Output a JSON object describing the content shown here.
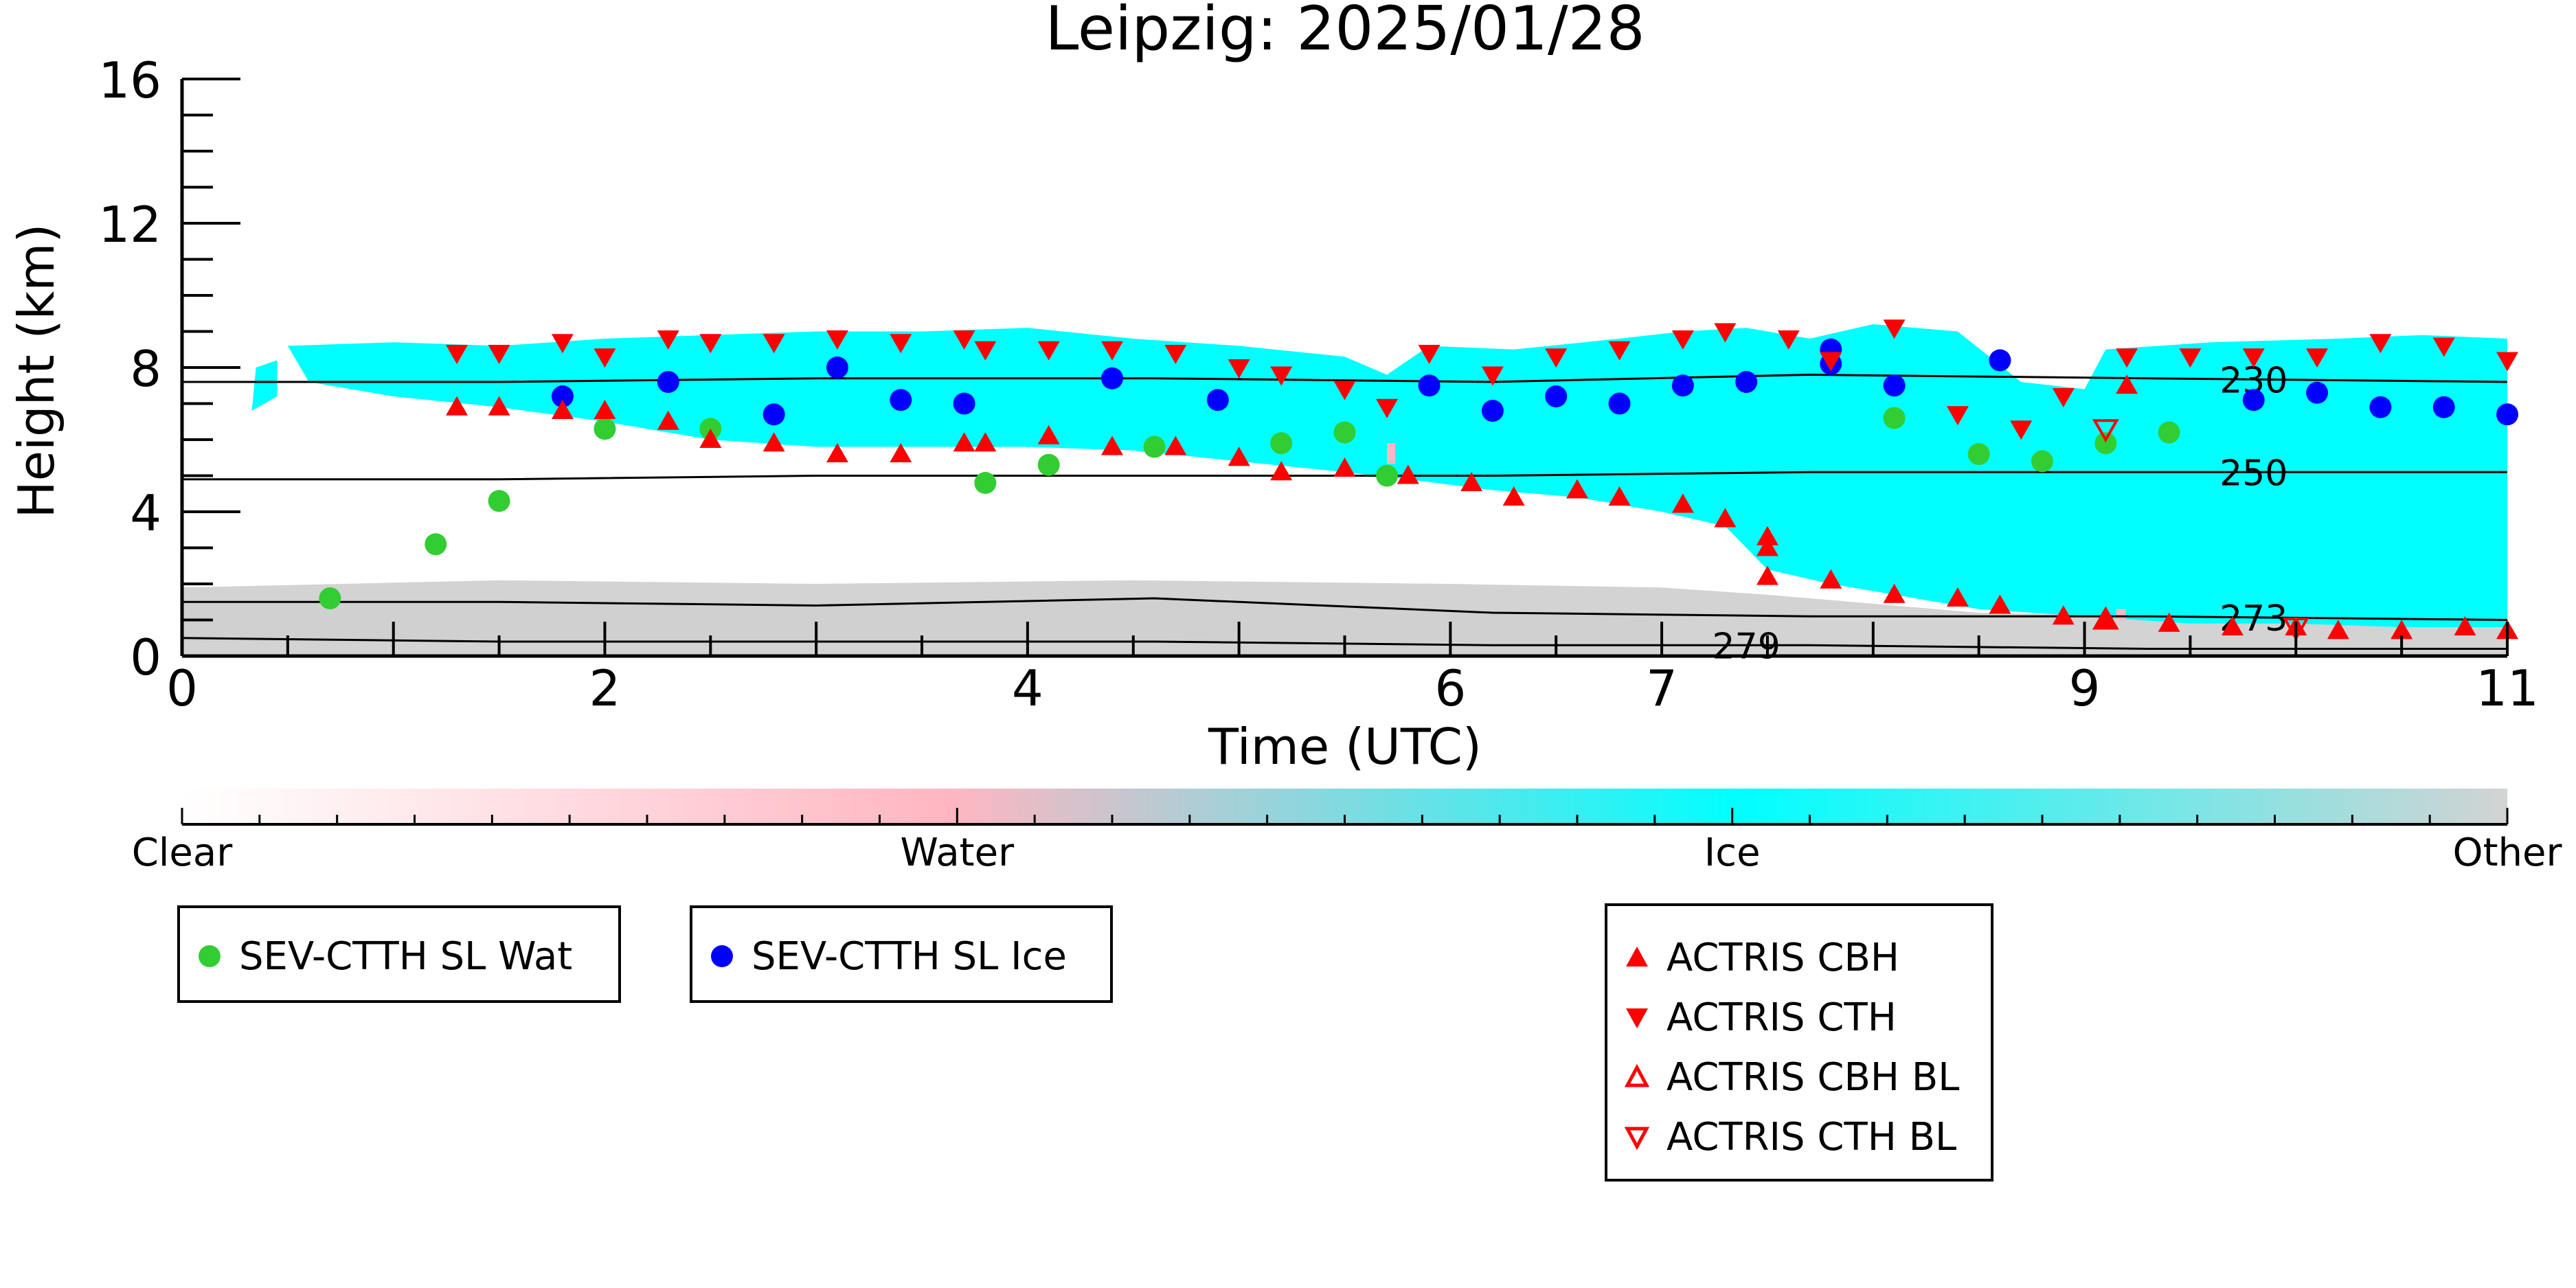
{
  "chart_data": {
    "type": "scatter",
    "title": "Leipzig: 2025/01/28",
    "xlabel": "Time (UTC)",
    "ylabel": "Height (km)",
    "xlim": [
      0,
      11
    ],
    "ylim": [
      0,
      16
    ],
    "x_tick_labels": [
      "0",
      "2",
      "4",
      "6",
      "7",
      "9",
      "11"
    ],
    "y_tick_labels": [
      "0",
      "4",
      "8",
      "12",
      "16"
    ],
    "colorbar": {
      "labels": [
        "Clear",
        "Water",
        "Ice",
        "Other"
      ],
      "colors": {
        "clear": "#ffffff",
        "water": "#ffb6c1",
        "ice": "#00ffff",
        "other": "#d3d3d3"
      }
    },
    "isotherms": [
      {
        "label": "230",
        "y_km": [
          7.6,
          7.6,
          7.7,
          7.7,
          7.6,
          7.8,
          7.7,
          7.6
        ]
      },
      {
        "label": "250",
        "y_km": [
          4.9,
          4.9,
          5.0,
          5.0,
          5.0,
          5.1,
          5.1,
          5.1
        ]
      },
      {
        "label": "273",
        "y_km": [
          1.5,
          1.5,
          1.4,
          1.6,
          1.2,
          1.1,
          1.1,
          1.0
        ]
      },
      {
        "label": "279",
        "y_km": [
          0.5,
          0.4,
          0.4,
          0.4,
          0.3,
          0.3,
          0.2,
          0.2
        ]
      }
    ],
    "isotherm_x": [
      0,
      1.5,
      3.0,
      4.6,
      6.2,
      7.7,
      9.3,
      11.0
    ],
    "series": [
      {
        "name": "SEV-CTTH SL Wat",
        "marker": "circle",
        "color": "#32cd32",
        "points": [
          [
            0.7,
            1.6
          ],
          [
            1.2,
            3.1
          ],
          [
            1.5,
            4.3
          ],
          [
            2.0,
            6.3
          ],
          [
            2.5,
            6.3
          ],
          [
            3.8,
            4.8
          ],
          [
            4.1,
            5.3
          ],
          [
            4.6,
            5.8
          ],
          [
            5.2,
            5.9
          ],
          [
            5.5,
            6.2
          ],
          [
            5.7,
            5.0
          ],
          [
            8.1,
            6.6
          ],
          [
            8.5,
            5.6
          ],
          [
            8.8,
            5.4
          ],
          [
            9.1,
            5.9
          ],
          [
            9.4,
            6.2
          ]
        ]
      },
      {
        "name": "SEV-CTTH SL Ice",
        "marker": "circle",
        "color": "#0000ff",
        "points": [
          [
            1.8,
            7.2
          ],
          [
            2.3,
            7.6
          ],
          [
            2.8,
            6.7
          ],
          [
            3.1,
            8.0
          ],
          [
            3.4,
            7.1
          ],
          [
            3.7,
            7.0
          ],
          [
            4.4,
            7.7
          ],
          [
            4.9,
            7.1
          ],
          [
            5.9,
            7.5
          ],
          [
            6.2,
            6.8
          ],
          [
            6.5,
            7.2
          ],
          [
            6.8,
            7.0
          ],
          [
            7.1,
            7.5
          ],
          [
            7.4,
            7.6
          ],
          [
            7.8,
            8.5
          ],
          [
            7.8,
            8.1
          ],
          [
            8.1,
            7.5
          ],
          [
            8.6,
            8.2
          ],
          [
            9.8,
            7.1
          ],
          [
            10.1,
            7.3
          ],
          [
            10.4,
            6.9
          ],
          [
            10.7,
            6.9
          ],
          [
            11.0,
            6.7
          ]
        ]
      },
      {
        "name": "ACTRIS CBH",
        "marker": "triangle-up",
        "color": "#ff0000",
        "filled": true,
        "points": [
          [
            1.3,
            6.9
          ],
          [
            1.5,
            6.9
          ],
          [
            1.8,
            6.8
          ],
          [
            2.0,
            6.8
          ],
          [
            2.3,
            6.5
          ],
          [
            2.5,
            6.0
          ],
          [
            2.8,
            5.9
          ],
          [
            3.1,
            5.6
          ],
          [
            3.4,
            5.6
          ],
          [
            3.7,
            5.9
          ],
          [
            3.8,
            5.9
          ],
          [
            4.1,
            6.1
          ],
          [
            4.4,
            5.8
          ],
          [
            4.7,
            5.8
          ],
          [
            5.0,
            5.5
          ],
          [
            5.2,
            5.1
          ],
          [
            5.5,
            5.2
          ],
          [
            5.8,
            5.0
          ],
          [
            6.1,
            4.8
          ],
          [
            6.3,
            4.4
          ],
          [
            6.6,
            4.6
          ],
          [
            6.8,
            4.4
          ],
          [
            7.1,
            4.2
          ],
          [
            7.3,
            3.8
          ],
          [
            7.5,
            3.3
          ],
          [
            7.5,
            3.0
          ],
          [
            7.5,
            2.2
          ],
          [
            7.8,
            2.1
          ],
          [
            8.1,
            1.7
          ],
          [
            8.4,
            1.6
          ],
          [
            8.6,
            1.4
          ],
          [
            8.9,
            1.1
          ],
          [
            9.1,
            1.0
          ],
          [
            9.4,
            0.9
          ],
          [
            9.7,
            0.8
          ],
          [
            10.0,
            0.8
          ],
          [
            10.2,
            0.7
          ],
          [
            10.5,
            0.7
          ],
          [
            10.8,
            0.8
          ],
          [
            11.0,
            0.7
          ],
          [
            9.2,
            7.5
          ]
        ]
      },
      {
        "name": "ACTRIS CTH",
        "marker": "triangle-down",
        "color": "#ff0000",
        "filled": true,
        "points": [
          [
            1.3,
            8.4
          ],
          [
            1.5,
            8.4
          ],
          [
            1.8,
            8.7
          ],
          [
            2.0,
            8.3
          ],
          [
            2.3,
            8.8
          ],
          [
            2.5,
            8.7
          ],
          [
            2.8,
            8.7
          ],
          [
            3.1,
            8.8
          ],
          [
            3.4,
            8.7
          ],
          [
            3.7,
            8.8
          ],
          [
            3.8,
            8.5
          ],
          [
            4.1,
            8.5
          ],
          [
            4.4,
            8.5
          ],
          [
            4.7,
            8.4
          ],
          [
            5.0,
            8.0
          ],
          [
            5.2,
            7.8
          ],
          [
            5.5,
            7.4
          ],
          [
            5.7,
            6.9
          ],
          [
            5.9,
            8.4
          ],
          [
            6.2,
            7.8
          ],
          [
            6.5,
            8.3
          ],
          [
            6.8,
            8.5
          ],
          [
            7.1,
            8.8
          ],
          [
            7.3,
            9.0
          ],
          [
            7.6,
            8.8
          ],
          [
            7.8,
            8.2
          ],
          [
            8.1,
            9.1
          ],
          [
            8.4,
            6.7
          ],
          [
            8.7,
            6.3
          ],
          [
            8.9,
            7.2
          ],
          [
            9.2,
            8.3
          ],
          [
            9.5,
            8.3
          ],
          [
            9.8,
            8.3
          ],
          [
            10.1,
            8.3
          ],
          [
            10.4,
            8.7
          ],
          [
            10.7,
            8.6
          ],
          [
            11.0,
            8.2
          ]
        ]
      },
      {
        "name": "ACTRIS CBH BL",
        "marker": "triangle-up",
        "color": "#ff0000",
        "filled": false,
        "points": [
          [
            9.1,
            1.0
          ]
        ]
      },
      {
        "name": "ACTRIS CTH BL",
        "marker": "triangle-down",
        "color": "#ff0000",
        "filled": false,
        "points": [
          [
            9.1,
            6.3
          ],
          [
            10.0,
            0.8
          ]
        ]
      }
    ]
  },
  "legends": [
    {
      "entries": [
        "SEV-CTTH SL Wat"
      ]
    },
    {
      "entries": [
        "SEV-CTTH SL Ice"
      ]
    },
    {
      "entries": [
        "ACTRIS CBH",
        "ACTRIS CTH",
        "ACTRIS CBH BL",
        "ACTRIS CTH BL"
      ]
    }
  ]
}
